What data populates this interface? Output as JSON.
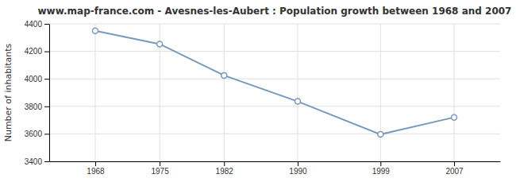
{
  "chart_data": {
    "type": "line",
    "title": "www.map-france.com - Avesnes-les-Aubert : Population growth between 1968 and 2007",
    "ylabel": "Number of inhabitants",
    "x": [
      1968,
      1975,
      1982,
      1990,
      1999,
      2007
    ],
    "values": [
      4350,
      4253,
      4025,
      3836,
      3596,
      3720
    ],
    "color": "#7799bb",
    "marker": "circle",
    "xlim": [
      1963,
      2012
    ],
    "xticks": [
      1968,
      1975,
      1982,
      1990,
      1999,
      2007
    ],
    "ylim": [
      3400,
      4400
    ],
    "yticks": [
      3400,
      3600,
      3800,
      4000,
      4200,
      4400
    ],
    "grid": true
  }
}
